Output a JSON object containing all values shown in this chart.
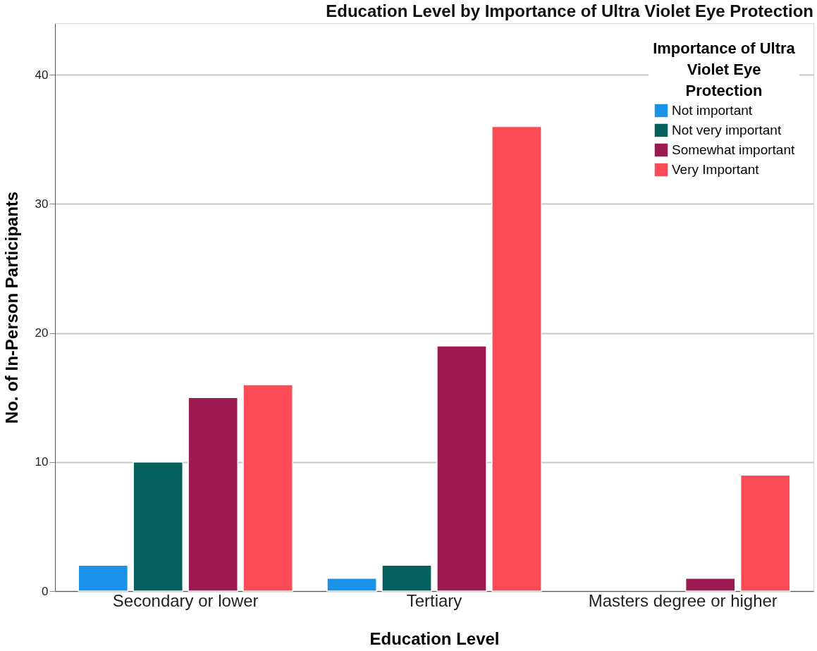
{
  "chart_data": {
    "type": "bar",
    "title": "Education Level by Importance of Ultra Violet Eye Protection",
    "xlabel": "Education Level",
    "ylabel": "No. of In-Person Participants",
    "legend_title": "Importance of Ultra Violet Eye Protection",
    "categories": [
      "Secondary or lower",
      "Tertiary",
      "Masters degree or higher"
    ],
    "series": [
      {
        "name": "Not important",
        "color": "#1a92e8",
        "values": [
          2,
          1,
          null
        ]
      },
      {
        "name": "Not very important",
        "color": "#03605a",
        "values": [
          10,
          2,
          null
        ]
      },
      {
        "name": "Somewhat important",
        "color": "#9c1a50",
        "values": [
          15,
          19,
          1
        ]
      },
      {
        "name": "Very Important",
        "color": "#fb4b57",
        "values": [
          16,
          36,
          9
        ]
      }
    ],
    "ylim": [
      0,
      44
    ],
    "yticks": [
      0,
      10,
      20,
      30,
      40
    ],
    "grid": "y",
    "legend": "top right"
  }
}
